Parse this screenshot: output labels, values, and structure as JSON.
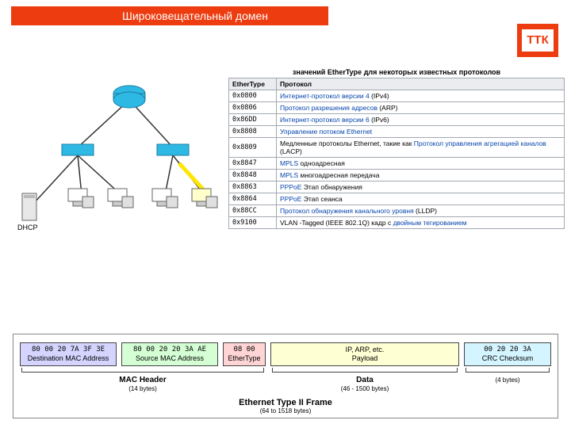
{
  "title": "Широковещательный домен",
  "logo": "ТТК",
  "dhcp_label": "DHCP",
  "colors": {
    "accent": "#ed3c10",
    "device_cyan": "#2db9e4",
    "link_color": "#0645ad",
    "field_bg": {
      "dest": "#d4d4ff",
      "src": "#d4ffd4",
      "ether": "#ffd4d4",
      "data": "#ffffd4",
      "crc": "#d4f4ff"
    }
  },
  "table": {
    "title": "значений EtherType для некоторых известных протоколов",
    "headers": [
      "EtherType",
      "Протокол"
    ],
    "rows": [
      {
        "code": "0x0800",
        "link": "Интернет-протокол версии 4",
        "after": " (IPv4)"
      },
      {
        "code": "0x0806",
        "link": "Протокол разрешения адресов",
        "after": " (ARP)"
      },
      {
        "code": "0x86DD",
        "link": "Интернет-протокол версии 6",
        "after": " (IPv6)"
      },
      {
        "code": "0x8808",
        "link": "Управление потоком Ethernet",
        "after": ""
      },
      {
        "code": "0x8809",
        "plain_before": "Медленные протоколы Ethernet, такие как ",
        "link": "Протокол управления агрегацией каналов",
        "after": " (LACP)"
      },
      {
        "code": "0x8847",
        "link": "MPLS",
        "after": " одноадресная"
      },
      {
        "code": "0x8848",
        "link": "MPLS",
        "after": " многоадресная передача"
      },
      {
        "code": "0x8863",
        "link": "PPPoE",
        "after": " Этап обнаружения"
      },
      {
        "code": "0x8864",
        "link": "PPPoE",
        "after": " Этап сеанса"
      },
      {
        "code": "0x88CC",
        "link": "Протокол обнаружения канального уровня",
        "after": " (LLDP)"
      },
      {
        "code": "0x9100",
        "plain_before": "VLAN -Tagged (IEEE 802.1Q) кадр с ",
        "link": "двойным тегированием",
        "after": ""
      }
    ]
  },
  "frame": {
    "dest": {
      "hex": "80 00 20 7A 3F 3E",
      "label": "Destination MAC Address"
    },
    "src": {
      "hex": "80 00 20 20 3A AE",
      "label": "Source MAC Address"
    },
    "ether": {
      "hex": "08 00",
      "label": "EtherType"
    },
    "data": {
      "label1": "IP, ARP, etc.",
      "label2": "Payload"
    },
    "crc": {
      "hex": "00 20 20 3A",
      "label": "CRC Checksum"
    },
    "mac_group": {
      "title": "MAC Header",
      "sub": "(14 bytes)"
    },
    "data_group": {
      "title": "Data",
      "sub": "(46 - 1500 bytes)"
    },
    "crc_group": {
      "sub": "(4 bytes)"
    },
    "frame_title": "Ethernet Type II Frame",
    "frame_sub": "(64 to 1518 bytes)"
  }
}
